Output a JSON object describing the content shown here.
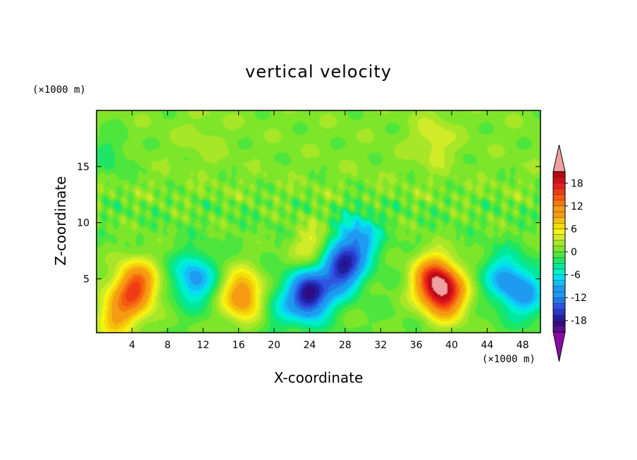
{
  "chart_data": {
    "type": "heatmap",
    "title": "vertical velocity",
    "xlabel": "X-coordinate",
    "ylabel": "Z-coordinate",
    "x_unit": "(×1000 m)",
    "y_unit": "(×1000 m)",
    "xlim": [
      0,
      50
    ],
    "ylim": [
      0.2,
      20
    ],
    "x_ticks": [
      4,
      8,
      12,
      16,
      20,
      24,
      28,
      32,
      36,
      40,
      44,
      48
    ],
    "y_ticks": [
      5,
      10,
      15
    ],
    "colorbar": {
      "levels": [
        -21,
        -19.5,
        -18,
        -16.5,
        -15,
        -13.5,
        -12,
        -10.5,
        -9,
        -7.5,
        -6,
        -4.5,
        -3,
        -1.5,
        0,
        1.5,
        3,
        4.5,
        6,
        7.5,
        9,
        10.5,
        12,
        13.5,
        15,
        16.5,
        18,
        19.5,
        21
      ],
      "tick_labels": [
        18,
        12,
        6,
        0,
        -6,
        -12,
        -18
      ],
      "colors": [
        "#5a0f8f",
        "#320a82",
        "#1f1ea0",
        "#2837c8",
        "#2f55e0",
        "#1f78e8",
        "#1e9bf0",
        "#15bdf5",
        "#00e1f0",
        "#00f0c8",
        "#00e89a",
        "#1ee664",
        "#4ee63c",
        "#7ee62a",
        "#a8e628",
        "#d0ec28",
        "#f5f514",
        "#f5dc0a",
        "#f5be0a",
        "#f59b14",
        "#f5780f",
        "#f55a0f",
        "#f03c14",
        "#e61e1e",
        "#d20f19",
        "#b40a12"
      ],
      "under_color": "#8b0aa5",
      "over_color": "#f0a0a0"
    },
    "features": [
      {
        "x": 4.5,
        "z": 4.3,
        "w": 15
      },
      {
        "x": 2.3,
        "z": 1.8,
        "w": 9
      },
      {
        "x": 11,
        "z": 5.0,
        "w": -10
      },
      {
        "x": 16.5,
        "z": 3.5,
        "w": 12
      },
      {
        "x": 24,
        "z": 3.6,
        "w": -19
      },
      {
        "x": 27.5,
        "z": 6.0,
        "w": -17
      },
      {
        "x": 29.5,
        "z": 8.5,
        "w": -10
      },
      {
        "x": 24.5,
        "z": 7.5,
        "w": 6
      },
      {
        "x": 38,
        "z": 4.8,
        "w": 16
      },
      {
        "x": 39.5,
        "z": 3.5,
        "w": 13
      },
      {
        "x": 46,
        "z": 5.0,
        "w": -9
      },
      {
        "x": 48.5,
        "z": 3.5,
        "w": -8
      },
      {
        "x": 20.5,
        "z": 2.5,
        "w": -4
      },
      {
        "x": 38,
        "z": 17.3,
        "w": 3.5
      },
      {
        "x": 12,
        "z": 17.5,
        "w": 1.5
      },
      {
        "x": 1.5,
        "z": 16.0,
        "w": -3
      }
    ]
  }
}
